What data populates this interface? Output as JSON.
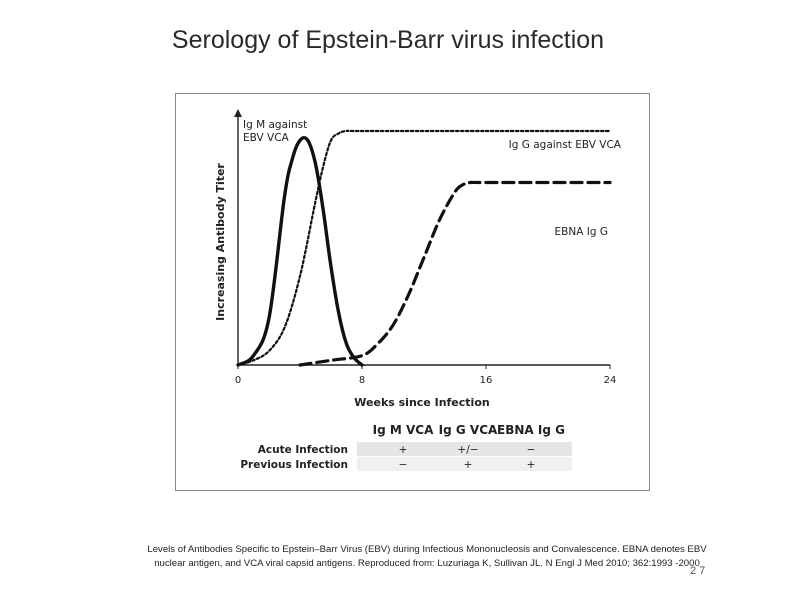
{
  "slide": {
    "title": "Serology of Epstein-Barr virus infection",
    "caption": "Levels of Antibodies Specific to Epstein–Barr Virus (EBV) during Infectious Mononucleosis and Convalescence. EBNA denotes EBV nuclear antigen, and VCA viral capsid antigens. Reproduced from: Luzuriaga K, Sullivan JL. N Engl J Med 2010; 362:1993 -2000",
    "page_number": "27"
  },
  "chart_data": {
    "type": "line",
    "xlabel": "Weeks since Infection",
    "ylabel": "Increasing Antibody Titer",
    "xlim": [
      0,
      24
    ],
    "xticks": [
      0,
      8,
      16,
      24
    ],
    "ylim": [
      0,
      1
    ],
    "y_tick_labels": false,
    "grid": false,
    "series": [
      {
        "name": "IgM against EBV VCA",
        "style": "solid",
        "color": "#111111",
        "x": [
          0,
          1,
          2,
          3,
          3.5,
          4,
          4.5,
          5,
          5.5,
          6,
          6.5,
          7,
          7.5,
          8
        ],
        "y": [
          0.0,
          0.04,
          0.2,
          0.72,
          0.88,
          0.96,
          0.96,
          0.86,
          0.66,
          0.42,
          0.22,
          0.09,
          0.03,
          0.0
        ]
      },
      {
        "name": "IgG against EBV VCA",
        "style": "dotted",
        "color": "#111111",
        "x": [
          0,
          1,
          2,
          3,
          4,
          5,
          5.5,
          6,
          6.5,
          7,
          8,
          16,
          24
        ],
        "y": [
          0.0,
          0.02,
          0.06,
          0.16,
          0.38,
          0.7,
          0.85,
          0.96,
          0.99,
          1.0,
          1.0,
          1.0,
          1.0
        ]
      },
      {
        "name": "EBNA IgG",
        "style": "dashed",
        "color": "#111111",
        "x": [
          4,
          6,
          8,
          9,
          10,
          11,
          12,
          13,
          14,
          14.5,
          15,
          16,
          24
        ],
        "y": [
          0.0,
          0.02,
          0.04,
          0.09,
          0.17,
          0.3,
          0.46,
          0.62,
          0.74,
          0.77,
          0.78,
          0.78,
          0.78
        ]
      }
    ],
    "series_labels": [
      {
        "text_lines": [
          "Ig M against",
          "EBV VCA"
        ],
        "series": 0
      },
      {
        "text_lines": [
          "Ig G against EBV VCA"
        ],
        "series": 1
      },
      {
        "text_lines": [
          "EBNA Ig G"
        ],
        "series": 2
      }
    ],
    "table": {
      "columns": [
        "Ig M VCA",
        "Ig G VCA",
        "EBNA Ig G"
      ],
      "rows": [
        {
          "label": "Acute Infection",
          "values": [
            "+",
            "+/−",
            "−"
          ]
        },
        {
          "label": "Previous Infection",
          "values": [
            "−",
            "+",
            "+"
          ]
        }
      ]
    }
  }
}
